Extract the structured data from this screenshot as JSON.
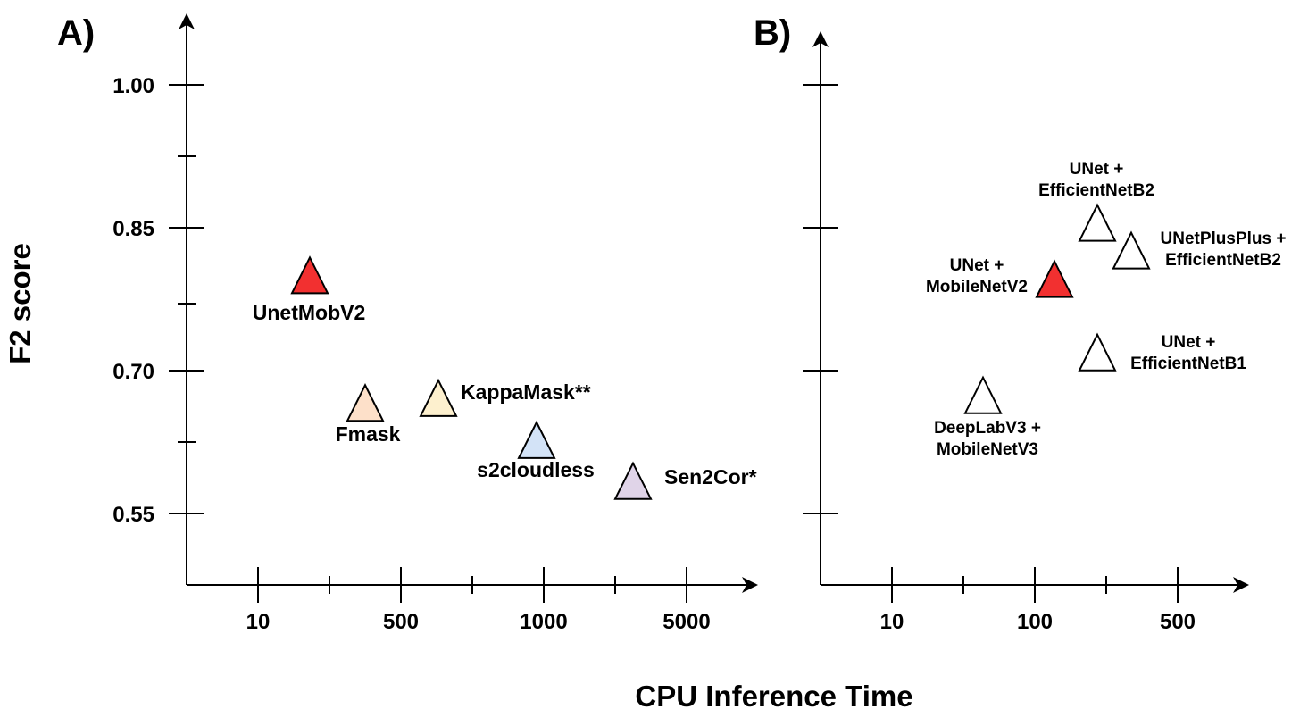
{
  "figure": {
    "ylabel": "F2 score",
    "xlabel": "CPU Inference Time"
  },
  "chart_data": [
    {
      "type": "scatter",
      "panel": "A)",
      "marker": "triangle",
      "x_ticks": [
        "10",
        "500",
        "1000",
        "5000"
      ],
      "y_ticks": [
        "1.00",
        "0.85",
        "0.70",
        "0.55"
      ],
      "ylim": [
        0.55,
        1.0
      ],
      "points": [
        {
          "label": "UnetMobV2",
          "x": 50,
          "y": 0.8,
          "color": "#f23030"
        },
        {
          "label": "Fmask",
          "x": 250,
          "y": 0.666,
          "color": "#fde0c9"
        },
        {
          "label": "KappaMask**",
          "x": 650,
          "y": 0.671,
          "color": "#fdf0ce"
        },
        {
          "label": "s2cloudless",
          "x": 950,
          "y": 0.627,
          "color": "#d3e3f7"
        },
        {
          "label": "Sen2Cor*",
          "x": 3000,
          "y": 0.584,
          "color": "#e0d4e8"
        }
      ]
    },
    {
      "type": "scatter",
      "panel": "B)",
      "marker": "triangle",
      "x_ticks": [
        "10",
        "100",
        "500"
      ],
      "y_ticks": [],
      "ylim": [
        0.55,
        1.0
      ],
      "points": [
        {
          "label_lines": [
            "UNet +",
            "EfficientNetB2"
          ],
          "x": 250,
          "y": 0.855,
          "color": "#ffffff"
        },
        {
          "label_lines": [
            "UNetPlusPlus +",
            "EfficientNetB2"
          ],
          "x": 350,
          "y": 0.826,
          "color": "#ffffff"
        },
        {
          "label_lines": [
            "UNet +",
            "MobileNetV2"
          ],
          "x": 130,
          "y": 0.796,
          "color": "#f23030"
        },
        {
          "label_lines": [
            "UNet +",
            "EfficientNetB1"
          ],
          "x": 250,
          "y": 0.719,
          "color": "#ffffff"
        },
        {
          "label_lines": [
            "DeepLabV3 +",
            "MobileNetV3"
          ],
          "x": 40,
          "y": 0.674,
          "color": "#ffffff"
        }
      ]
    }
  ]
}
